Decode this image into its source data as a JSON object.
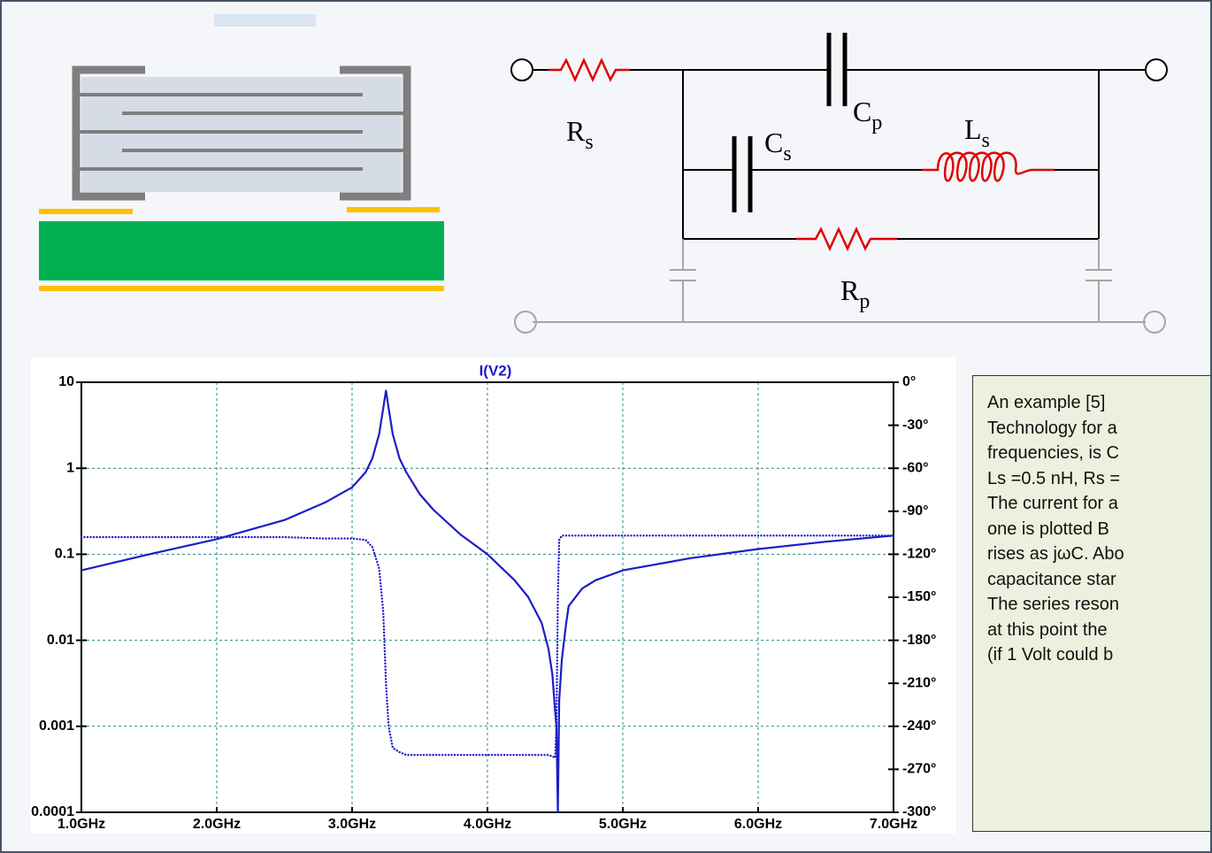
{
  "chart_data": {
    "type": "line",
    "title": "I(V2)",
    "x": [
      1.0,
      1.5,
      2.0,
      2.5,
      2.8,
      3.0,
      3.1,
      3.15,
      3.2,
      3.23,
      3.25,
      3.27,
      3.3,
      3.35,
      3.4,
      3.5,
      3.6,
      3.8,
      4.0,
      4.2,
      4.3,
      4.4,
      4.45,
      4.48,
      4.5,
      4.51,
      4.52,
      4.53,
      4.55,
      4.58,
      4.6,
      4.7,
      4.8,
      5.0,
      5.5,
      6.0,
      6.5,
      7.0
    ],
    "series": [
      {
        "color": "#1c1cc8",
        "style": "solid",
        "values": [
          0.065,
          0.1,
          0.15,
          0.25,
          0.4,
          0.6,
          0.9,
          1.3,
          2.5,
          5,
          8,
          5,
          2.5,
          1.3,
          0.9,
          0.5,
          0.33,
          0.17,
          0.1,
          0.05,
          0.032,
          0.016,
          0.008,
          0.004,
          0.0015,
          0.001,
          0.0001,
          0.002,
          0.006,
          0.015,
          0.025,
          0.04,
          0.05,
          0.065,
          0.09,
          0.115,
          0.14,
          0.165
        ]
      },
      {
        "color": "#1c1cc8",
        "style": "dotted",
        "axis": "y2",
        "values": [
          -108,
          -108,
          -108,
          -108,
          -109,
          -109,
          -110,
          -115,
          -130,
          -160,
          -210,
          -240,
          -255,
          -258,
          -260,
          -260,
          -260,
          -260,
          -260,
          -260,
          -260,
          -260,
          -260,
          -261,
          -262,
          -240,
          -150,
          -110,
          -107,
          -107,
          -107,
          -107,
          -107,
          -107,
          -107,
          -107,
          -107,
          -107
        ]
      }
    ],
    "xlim": [
      1.0,
      7.0
    ],
    "xticks": [
      {
        "value": 1,
        "label": "1.0GHz"
      },
      {
        "value": 2,
        "label": "2.0GHz"
      },
      {
        "value": 3,
        "label": "3.0GHz"
      },
      {
        "value": 4,
        "label": "4.0GHz"
      },
      {
        "value": 5,
        "label": "5.0GHz"
      },
      {
        "value": 6,
        "label": "6.0GHz"
      },
      {
        "value": 7,
        "label": "7.0GHz"
      }
    ],
    "ylim": [
      0.0001,
      10
    ],
    "ylog": true,
    "yticks": [
      10,
      1,
      0.1,
      0.01,
      0.001,
      0.0001
    ],
    "y2lim": [
      -300,
      0
    ],
    "y2ticks": [
      {
        "value": 0,
        "label": "0°"
      },
      {
        "value": -30,
        "label": "-30°"
      },
      {
        "value": -60,
        "label": "-60°"
      },
      {
        "value": -90,
        "label": "-90°"
      },
      {
        "value": -120,
        "label": "-120°"
      },
      {
        "value": -150,
        "label": "-150°"
      },
      {
        "value": -180,
        "label": "-180°"
      },
      {
        "value": -210,
        "label": "-210°"
      },
      {
        "value": -240,
        "label": "-240°"
      },
      {
        "value": -270,
        "label": "-270°"
      },
      {
        "value": -300,
        "label": "-300°"
      }
    ],
    "grid": true
  },
  "circuit": {
    "labels": [
      {
        "symbol": "R",
        "subscript": "s"
      },
      {
        "symbol": "C",
        "subscript": "p"
      },
      {
        "symbol": "C",
        "subscript": "s"
      },
      {
        "symbol": "L",
        "subscript": "s"
      },
      {
        "symbol": "R",
        "subscript": "p"
      }
    ]
  },
  "note": {
    "lines": [
      "An example [5]",
      "Technology for a",
      "frequencies, is C",
      "Ls =0.5 nH, Rs =",
      "The current for a",
      "one is plotted  B",
      "rises as jωC. Abo",
      "capacitance star",
      "The series reson",
      "at this point the",
      "(if 1 Volt could b"
    ]
  }
}
